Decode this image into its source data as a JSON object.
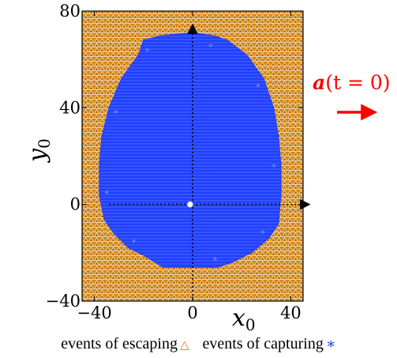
{
  "chart_data": {
    "type": "scatter",
    "title": "",
    "xlabel": {
      "symbol": "x",
      "subscript": "0"
    },
    "ylabel": {
      "symbol": "y",
      "subscript": "0"
    },
    "xlim": [
      -45,
      45
    ],
    "ylim": [
      -40,
      80
    ],
    "xticks": [
      -40,
      0,
      40
    ],
    "yticks": [
      -40,
      0,
      40,
      80
    ],
    "xtick_labels": [
      "−40",
      "0",
      "40"
    ],
    "ytick_labels": [
      "−40",
      "0",
      "40",
      "80"
    ],
    "grid": false,
    "series": [
      {
        "name": "events of escaping",
        "marker": "triangle",
        "color": "#e07b00",
        "region": "all initial positions outside the capture region"
      },
      {
        "name": "events of capturing",
        "marker": "asterisk",
        "color": "#1f3fff",
        "region_boundary": [
          [
            -20,
            68
          ],
          [
            -12,
            70
          ],
          [
            0,
            71
          ],
          [
            8,
            70
          ],
          [
            14,
            68
          ],
          [
            22,
            62
          ],
          [
            29,
            52
          ],
          [
            33,
            40
          ],
          [
            35,
            28
          ],
          [
            36,
            16
          ],
          [
            36,
            4
          ],
          [
            35,
            -8
          ],
          [
            31,
            -14
          ],
          [
            24,
            -20
          ],
          [
            16,
            -24
          ],
          [
            10,
            -26
          ],
          [
            -12,
            -26
          ],
          [
            -20,
            -21
          ],
          [
            -26,
            -18
          ],
          [
            -32,
            -12
          ],
          [
            -36,
            -6
          ],
          [
            -38,
            4
          ],
          [
            -38,
            16
          ],
          [
            -37,
            28
          ],
          [
            -34,
            40
          ],
          [
            -29,
            52
          ],
          [
            -22,
            62
          ]
        ]
      }
    ],
    "annotations": [
      {
        "label": "a(t = 0)",
        "color": "#ff0000",
        "arrow": "points in +x direction"
      }
    ],
    "axis_arrows": {
      "x_from": 0,
      "x_to": 35,
      "y_from": 0,
      "y_to": 74,
      "style": "dotted black with arrowheads"
    },
    "center_marker": {
      "x": -1,
      "y": 0,
      "color": "#ffffff"
    },
    "legend_placement": "bottom"
  },
  "legend": {
    "escaping_label": "events of escaping",
    "escaping_symbol": "△",
    "capturing_label": "events of capturing",
    "capturing_symbol": "∗"
  },
  "annotation": {
    "bold_symbol": "a",
    "rest": "(t = 0)"
  }
}
